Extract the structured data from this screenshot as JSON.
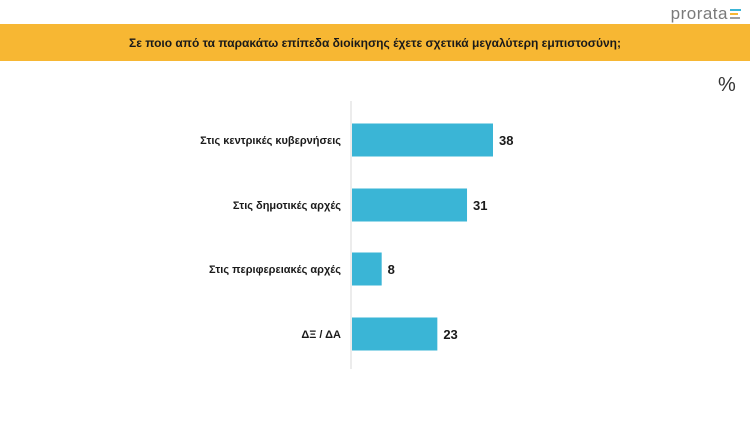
{
  "brand": {
    "name": "prorata",
    "bar_colors": [
      "#3ab5d6",
      "#f7b733",
      "#9e9e9e"
    ]
  },
  "header": {
    "question": "Σε ποιο από τα παρακάτω επίπεδα διοίκησης έχετε σχετικά μεγαλύτερη εμπιστοσύνη;"
  },
  "unit": "%",
  "colors": {
    "banner": "#f7b733",
    "bar": "#3ab5d6",
    "axis": "#d9d9d9"
  },
  "chart_data": {
    "type": "bar",
    "orientation": "horizontal",
    "categories": [
      "Στις κεντρικές κυβερνήσεις",
      "Στις δημοτικές αρχές",
      "Στις περιφερειακές αρχές",
      "ΔΞ / ΔΑ"
    ],
    "values": [
      38,
      31,
      8,
      23
    ],
    "unit": "%",
    "xlim": [
      0,
      38
    ],
    "grid": false
  }
}
